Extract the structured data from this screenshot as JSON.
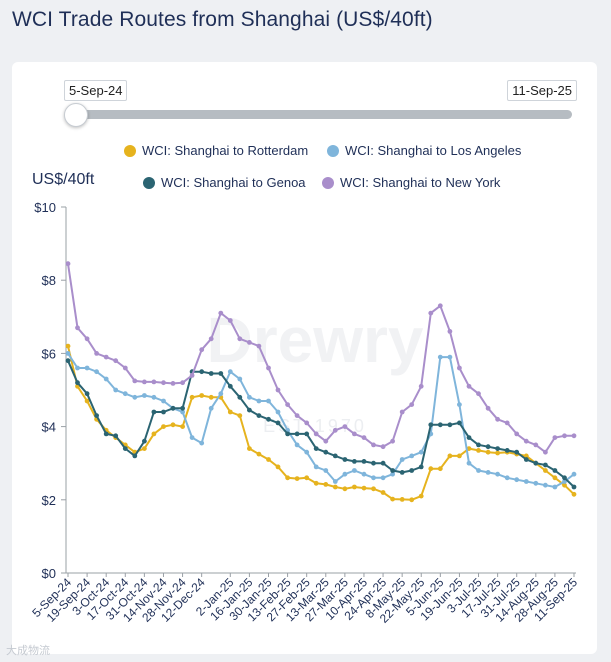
{
  "header": {
    "title": "WCI Trade Routes from Shanghai (US$/40ft)"
  },
  "slider": {
    "start_label": "5-Sep-24",
    "end_label": "11-Sep-25"
  },
  "watermark": {
    "text": "Drewry",
    "subtext": "EST 1970"
  },
  "footer": {
    "text": "大成物流"
  },
  "chart_data": {
    "type": "line",
    "ylabel": "US$/40ft",
    "ylim": [
      0,
      10
    ],
    "yticks": [
      0,
      2,
      4,
      6,
      8,
      10
    ],
    "ytick_labels": [
      "$0",
      "$2",
      "$4",
      "$6",
      "$8",
      "$10"
    ],
    "grid": false,
    "legend_position": "top",
    "x": [
      "5-Sep-24",
      "12-Sep-24",
      "19-Sep-24",
      "26-Sep-24",
      "3-Oct-24",
      "10-Oct-24",
      "17-Oct-24",
      "24-Oct-24",
      "31-Oct-24",
      "7-Nov-24",
      "14-Nov-24",
      "21-Nov-24",
      "28-Nov-24",
      "5-Dec-24",
      "12-Dec-24",
      "19-Dec-24",
      "26-Dec-24",
      "2-Jan-25",
      "9-Jan-25",
      "16-Jan-25",
      "23-Jan-25",
      "30-Jan-25",
      "6-Feb-25",
      "13-Feb-25",
      "20-Feb-25",
      "27-Feb-25",
      "6-Mar-25",
      "13-Mar-25",
      "20-Mar-25",
      "27-Mar-25",
      "3-Apr-25",
      "10-Apr-25",
      "17-Apr-25",
      "24-Apr-25",
      "1-May-25",
      "8-May-25",
      "15-May-25",
      "22-May-25",
      "29-May-25",
      "5-Jun-25",
      "12-Jun-25",
      "19-Jun-25",
      "26-Jun-25",
      "3-Jul-25",
      "10-Jul-25",
      "17-Jul-25",
      "24-Jul-25",
      "31-Jul-25",
      "7-Aug-25",
      "14-Aug-25",
      "21-Aug-25",
      "28-Aug-25",
      "4-Sep-25",
      "11-Sep-25"
    ],
    "x_tick_labels": [
      "5-Sep-24",
      "19-Sep-24",
      "3-Oct-24",
      "17-Oct-24",
      "31-Oct-24",
      "14-Nov-24",
      "28-Nov-24",
      "12-Dec-24",
      "2-Jan-25",
      "16-Jan-25",
      "30-Jan-25",
      "13-Feb-25",
      "27-Feb-25",
      "13-Mar-25",
      "27-Mar-25",
      "10-Apr-25",
      "24-Apr-25",
      "8-May-25",
      "22-May-25",
      "5-Jun-25",
      "19-Jun-25",
      "3-Jul-25",
      "17-Jul-25",
      "31-Jul-25",
      "14-Aug-25",
      "28-Aug-25",
      "11-Sep-25"
    ],
    "series": [
      {
        "name": "WCI: Shanghai to Rotterdam",
        "color": "#e6b31e",
        "values": [
          6.2,
          5.1,
          4.7,
          4.2,
          3.9,
          3.7,
          3.5,
          3.3,
          3.4,
          3.8,
          4.0,
          4.05,
          4.0,
          4.8,
          4.85,
          4.8,
          4.8,
          4.4,
          4.3,
          3.4,
          3.25,
          3.1,
          2.9,
          2.6,
          2.58,
          2.6,
          2.45,
          2.42,
          2.35,
          2.3,
          2.35,
          2.32,
          2.3,
          2.2,
          2.02,
          2.01,
          2.0,
          2.1,
          2.85,
          2.85,
          3.2,
          3.2,
          3.4,
          3.35,
          3.3,
          3.28,
          3.3,
          3.25,
          3.2,
          3.0,
          2.8,
          2.6,
          2.4,
          2.15
        ]
      },
      {
        "name": "WCI: Shanghai to Los Angeles",
        "color": "#7fb5db",
        "values": [
          6.0,
          5.6,
          5.6,
          5.5,
          5.3,
          5.0,
          4.9,
          4.8,
          4.85,
          4.8,
          4.7,
          4.5,
          4.4,
          3.7,
          3.55,
          4.5,
          4.9,
          5.5,
          5.3,
          4.8,
          4.7,
          4.7,
          4.4,
          3.9,
          3.5,
          3.3,
          2.9,
          2.8,
          2.5,
          2.7,
          2.8,
          2.7,
          2.6,
          2.6,
          2.7,
          3.1,
          3.2,
          3.3,
          3.8,
          5.9,
          5.9,
          4.6,
          3.0,
          2.8,
          2.75,
          2.7,
          2.6,
          2.55,
          2.5,
          2.45,
          2.4,
          2.35,
          2.5,
          2.7
        ]
      },
      {
        "name": "WCI: Shanghai to Genoa",
        "color": "#2b6472",
        "values": [
          5.8,
          5.2,
          4.9,
          4.3,
          3.8,
          3.75,
          3.4,
          3.2,
          3.6,
          4.4,
          4.4,
          4.5,
          4.5,
          5.5,
          5.5,
          5.45,
          5.45,
          5.1,
          4.8,
          4.45,
          4.3,
          4.2,
          4.1,
          3.8,
          3.8,
          3.8,
          3.4,
          3.3,
          3.2,
          3.1,
          3.05,
          3.05,
          3.0,
          3.0,
          2.8,
          2.75,
          2.8,
          2.9,
          4.05,
          4.05,
          4.05,
          4.1,
          3.7,
          3.5,
          3.45,
          3.4,
          3.35,
          3.3,
          3.1,
          3.0,
          2.95,
          2.8,
          2.6,
          2.35
        ]
      },
      {
        "name": "WCI: Shanghai to New York",
        "color": "#a98ecb",
        "values": [
          8.45,
          6.7,
          6.4,
          6.0,
          5.9,
          5.8,
          5.6,
          5.25,
          5.22,
          5.22,
          5.2,
          5.18,
          5.2,
          5.4,
          6.1,
          6.4,
          7.1,
          6.9,
          6.4,
          6.3,
          6.2,
          5.6,
          5.0,
          4.6,
          4.3,
          4.1,
          3.8,
          3.6,
          3.9,
          4.0,
          3.8,
          3.7,
          3.5,
          3.45,
          3.6,
          4.4,
          4.6,
          5.1,
          7.1,
          7.3,
          6.6,
          5.6,
          5.1,
          4.9,
          4.5,
          4.2,
          4.1,
          3.8,
          3.6,
          3.5,
          3.3,
          3.7,
          3.75,
          3.75
        ]
      }
    ]
  }
}
